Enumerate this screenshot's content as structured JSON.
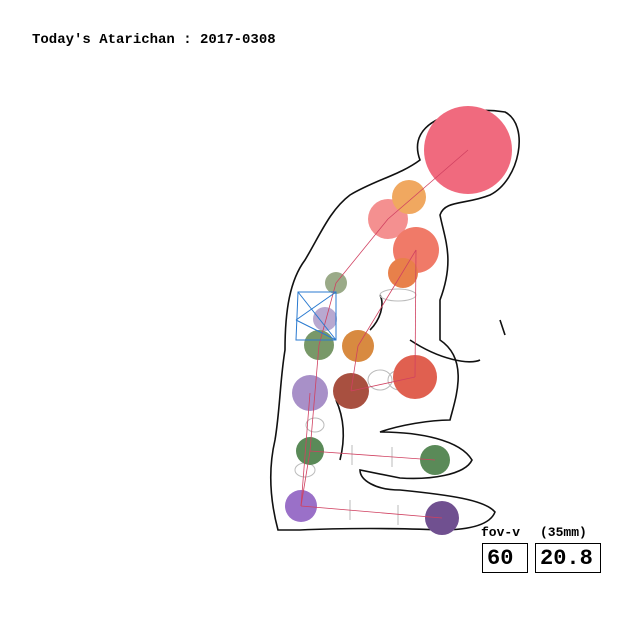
{
  "header": {
    "title": "Today's Atarichan : 2017-0308"
  },
  "camera": {
    "label": "fov-v",
    "unit_label": "(35mm)",
    "fov_value": "60",
    "focal_value": "20.8"
  }
}
